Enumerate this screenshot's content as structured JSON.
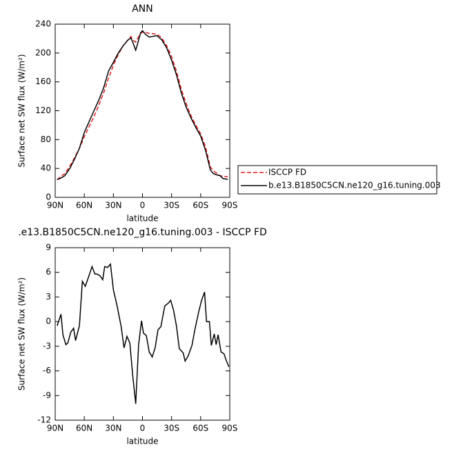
{
  "chart_data": [
    {
      "type": "line",
      "title": "ANN",
      "x_label": "latitude",
      "y_label": "Surface net SW flux (W/m²)",
      "xlim": [
        90,
        -90
      ],
      "xticks": [
        {
          "value": 90,
          "label": "90N"
        },
        {
          "value": 60,
          "label": "60N"
        },
        {
          "value": 30,
          "label": "30N"
        },
        0,
        {
          "value": -30,
          "label": "30S"
        },
        {
          "value": -60,
          "label": "60S"
        },
        {
          "value": -90,
          "label": "90S"
        }
      ],
      "ylim": [
        0,
        240
      ],
      "yticks": [
        0,
        40,
        80,
        120,
        160,
        200,
        240
      ],
      "legend": "right",
      "series": [
        {
          "name": "ISCCP FD",
          "color": "#e41a1c",
          "dash": true,
          "x": [
            88,
            85,
            80,
            75,
            70,
            65,
            60,
            55,
            50,
            45,
            40,
            35,
            30,
            25,
            20,
            15,
            12,
            10,
            7,
            5,
            2,
            0,
            -3,
            -7,
            -10,
            -15,
            -20,
            -25,
            -30,
            -35,
            -40,
            -45,
            -50,
            -55,
            -60,
            -65,
            -70,
            -73,
            -77,
            -80,
            -83,
            -88
          ],
          "values": [
            24,
            28,
            33,
            43,
            55,
            68,
            84,
            98,
            112,
            128,
            145,
            165,
            183,
            198,
            210,
            218,
            223,
            218,
            215,
            220,
            227,
            229,
            229,
            227,
            227,
            226,
            221,
            210,
            195,
            175,
            150,
            130,
            113,
            100,
            88,
            70,
            42,
            37,
            33,
            30,
            29,
            29
          ]
        },
        {
          "name": "b.e13.B1850C5CN.ne120_g16.tuning.003",
          "color": "#000000",
          "dash": false,
          "x": [
            88,
            85,
            80,
            75,
            70,
            65,
            60,
            55,
            50,
            45,
            40,
            35,
            30,
            25,
            20,
            15,
            12,
            10,
            7,
            5,
            2,
            0,
            -3,
            -7,
            -10,
            -15,
            -20,
            -25,
            -30,
            -35,
            -40,
            -45,
            -50,
            -55,
            -60,
            -65,
            -70,
            -73,
            -77,
            -80,
            -83,
            -88
          ],
          "values": [
            25,
            26,
            30,
            40,
            53,
            68,
            90,
            105,
            120,
            135,
            152,
            175,
            187,
            200,
            210,
            218,
            221,
            215,
            204,
            213,
            228,
            231,
            226,
            222,
            223,
            224,
            218,
            207,
            190,
            170,
            145,
            125,
            110,
            97,
            85,
            65,
            38,
            33,
            31,
            30,
            26,
            25
          ]
        }
      ]
    },
    {
      "type": "line",
      "title": ".e13.B1850C5CN.ne120_g16.tuning.003 - ISCCP FD",
      "x_label": "latitude",
      "y_label": "Surface net SW flux (W/m²)",
      "xlim": [
        90,
        -90
      ],
      "xticks": [
        {
          "value": 90,
          "label": "90N"
        },
        {
          "value": 60,
          "label": "60N"
        },
        {
          "value": 30,
          "label": "30N"
        },
        0,
        {
          "value": -30,
          "label": "30S"
        },
        {
          "value": -60,
          "label": "60S"
        },
        {
          "value": -90,
          "label": "90S"
        }
      ],
      "ylim": [
        -12,
        9
      ],
      "yticks": [
        -12,
        -9,
        -6,
        -3,
        0,
        3,
        6,
        9
      ],
      "series": [
        {
          "color": "#000000",
          "dash": false,
          "x": [
            88,
            84,
            82,
            79,
            77,
            74,
            71,
            69,
            65,
            62,
            59,
            56,
            52,
            49,
            47,
            44,
            41,
            39,
            36,
            33,
            30,
            26,
            22,
            19,
            16,
            13,
            10,
            7,
            4,
            1,
            -1,
            -4,
            -7,
            -10,
            -13,
            -16,
            -19,
            -23,
            -27,
            -29,
            -32,
            -35,
            -38,
            -42,
            -44,
            -47,
            -51,
            -54,
            -58,
            -61,
            -64,
            -66,
            -69,
            -71,
            -74,
            -76,
            -78,
            -81,
            -84,
            -86,
            -89
          ],
          "values": [
            -0.5,
            0.9,
            -1.6,
            -2.8,
            -2.6,
            -1.3,
            -0.8,
            -2.3,
            -0.5,
            4.9,
            4.3,
            5.3,
            6.7,
            5.8,
            5.8,
            5.6,
            5.1,
            6.7,
            6.6,
            7.0,
            3.9,
            1.8,
            -0.6,
            -3.2,
            -1.8,
            -2.6,
            -6.6,
            -10.0,
            -2.8,
            0.1,
            -1.4,
            -1.7,
            -3.7,
            -4.3,
            -3.2,
            -1.0,
            -0.6,
            1.9,
            2.3,
            2.6,
            1.4,
            -0.5,
            -3.3,
            -3.8,
            -4.8,
            -4.2,
            -2.9,
            -1.0,
            1.2,
            2.6,
            3.6,
            0.0,
            0.0,
            -2.9,
            -1.5,
            -2.8,
            -1.6,
            -3.7,
            -3.9,
            -4.6,
            -5.5
          ]
        }
      ]
    }
  ]
}
